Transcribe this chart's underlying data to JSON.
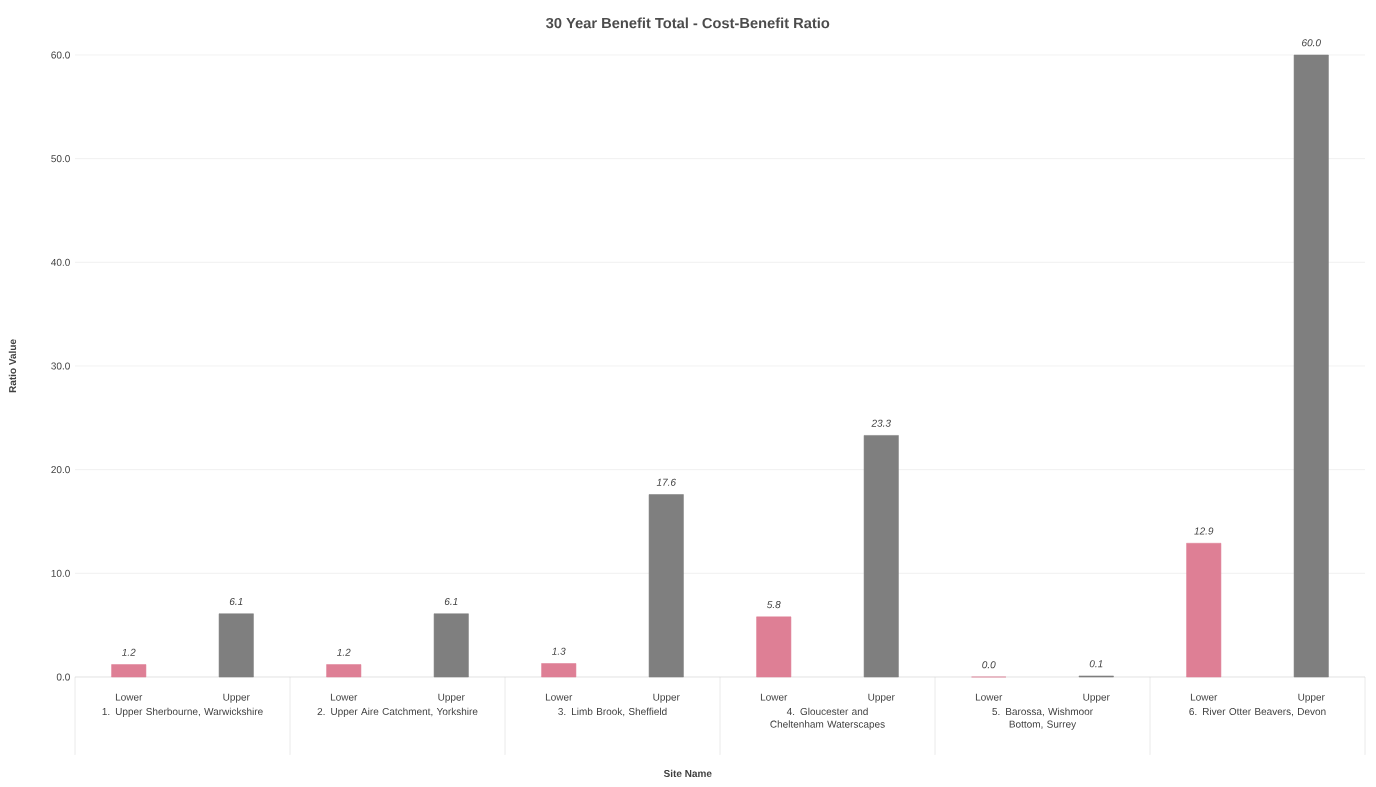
{
  "chart_data": {
    "type": "bar",
    "title": "30 Year Benefit Total - Cost-Benefit Ratio",
    "xlabel": "Site Name",
    "ylabel": "Ratio Value",
    "categories": [
      "1. Upper Sherbourne, Warwickshire",
      "2. Upper Aire Catchment, Yorkshire",
      "3. Limb Brook, Sheffield",
      "4. Gloucester and Cheltenham Waterscapes",
      "5. Barossa, Wishmoor Bottom, Surrey",
      "6. River Otter Beavers, Devon"
    ],
    "series": [
      {
        "name": "Lower",
        "color": "#de7f95",
        "values": [
          1.2,
          1.2,
          1.3,
          5.8,
          0.0,
          12.9
        ],
        "value_labels": [
          "1.2",
          "1.2",
          "1.3",
          "5.8",
          "0.0",
          "12.9"
        ]
      },
      {
        "name": "Upper",
        "color": "#7f7f7f",
        "values": [
          6.1,
          6.1,
          17.6,
          23.3,
          0.1,
          60.0
        ],
        "value_labels": [
          "6.1",
          "6.1",
          "17.6",
          "23.3",
          "0.1",
          "60.0"
        ]
      }
    ],
    "ylim": [
      0,
      60
    ],
    "yticks": [
      {
        "value": 0,
        "label": "0.0"
      },
      {
        "value": 10,
        "label": "10.0"
      },
      {
        "value": 20,
        "label": "20.0"
      },
      {
        "value": 30,
        "label": "30.0"
      },
      {
        "value": 40,
        "label": "40.0"
      },
      {
        "value": 50,
        "label": "50.0"
      },
      {
        "value": 60,
        "label": "60.0"
      }
    ],
    "grid": "y"
  }
}
